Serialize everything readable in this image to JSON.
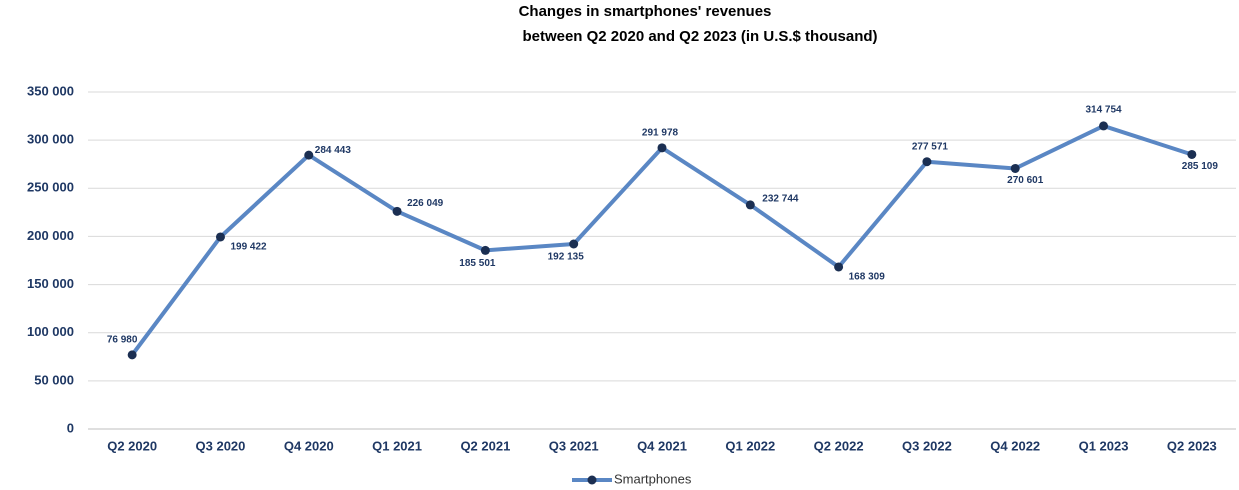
{
  "chart_data": {
    "type": "line",
    "title": [
      "Changes in  smartphones' revenues",
      "between Q2 2020 and Q2 2023 (in U.S.$ thousand)"
    ],
    "categories": [
      "Q2 2020",
      "Q3 2020",
      "Q4 2020",
      "Q1 2021",
      "Q2 2021",
      "Q3 2021",
      "Q4 2021",
      "Q1 2022",
      "Q2 2022",
      "Q3 2022",
      "Q4 2022",
      "Q1 2023",
      "Q2 2023"
    ],
    "series": [
      {
        "name": "Smartphones",
        "color": "#5a87c4",
        "marker_color": "#1b2f52",
        "values": [
          76980,
          199422,
          284443,
          226049,
          185501,
          192135,
          291978,
          232744,
          168309,
          277571,
          270601,
          314754,
          285109
        ],
        "value_labels": [
          "76 980",
          "199 422",
          "284 443",
          "226 049",
          "185 501",
          "192 135",
          "291 978",
          "232 744",
          "168 309",
          "277 571",
          "270 601",
          "314 754",
          "285 109"
        ]
      }
    ],
    "ylim": [
      0,
      350000
    ],
    "yticks": [
      0,
      {
        "value": 50000,
        "label": "50 000"
      },
      {
        "value": 100000,
        "label": "100 000"
      },
      {
        "value": 150000,
        "label": "150 000"
      },
      {
        "value": 200000,
        "label": "200 000"
      },
      {
        "value": 250000,
        "label": "250 000"
      },
      {
        "value": 300000,
        "label": "300 000"
      },
      {
        "value": 350000,
        "label": "350 000"
      }
    ],
    "grid": true,
    "legend": "bottom"
  }
}
